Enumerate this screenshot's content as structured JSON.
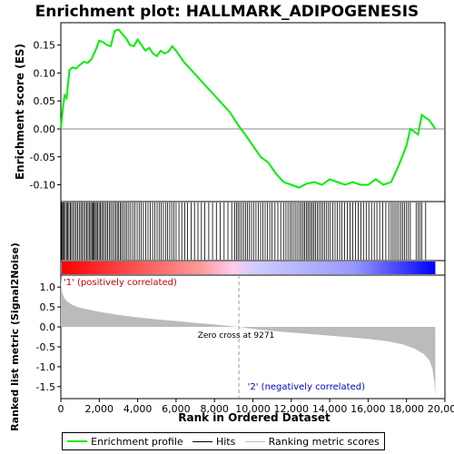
{
  "chart_data": {
    "type": "line",
    "title": "Enrichment plot: HALLMARK_ADIPOGENESIS",
    "top_panel": {
      "ylabel": "Enrichment score (ES)",
      "ylim": [
        -0.13,
        0.19
      ],
      "yticks": [
        "0.15",
        "0.10",
        "0.05",
        "0.00",
        "-0.05",
        "-0.10"
      ],
      "ytick_values": [
        0.15,
        0.1,
        0.05,
        0.0,
        -0.05,
        -0.1
      ],
      "series": [
        {
          "name": "Enrichment profile",
          "color": "#00ee00",
          "x": [
            0,
            100,
            200,
            300,
            450,
            600,
            800,
            1000,
            1200,
            1400,
            1600,
            1800,
            2000,
            2200,
            2400,
            2600,
            2800,
            3000,
            3200,
            3400,
            3600,
            3800,
            4000,
            4200,
            4400,
            4600,
            4800,
            5000,
            5200,
            5400,
            5600,
            5800,
            6000,
            6400,
            6800,
            7200,
            7600,
            8000,
            8400,
            8800,
            9271,
            9600,
            10000,
            10400,
            10800,
            11200,
            11600,
            12000,
            12400,
            12800,
            13200,
            13600,
            14000,
            14400,
            14800,
            15200,
            15600,
            16000,
            16400,
            16800,
            17200,
            17600,
            18000,
            18200,
            18400,
            18600,
            18800,
            19000,
            19200,
            19500
          ],
          "y": [
            0.0,
            0.035,
            0.06,
            0.055,
            0.105,
            0.11,
            0.108,
            0.115,
            0.12,
            0.118,
            0.125,
            0.14,
            0.158,
            0.155,
            0.15,
            0.148,
            0.175,
            0.178,
            0.17,
            0.162,
            0.15,
            0.148,
            0.16,
            0.15,
            0.14,
            0.145,
            0.135,
            0.13,
            0.14,
            0.135,
            0.138,
            0.148,
            0.14,
            0.12,
            0.105,
            0.09,
            0.075,
            0.06,
            0.045,
            0.03,
            0.005,
            -0.01,
            -0.03,
            -0.05,
            -0.06,
            -0.08,
            -0.095,
            -0.1,
            -0.105,
            -0.098,
            -0.095,
            -0.1,
            -0.09,
            -0.095,
            -0.1,
            -0.095,
            -0.1,
            -0.1,
            -0.09,
            -0.1,
            -0.095,
            -0.065,
            -0.03,
            0.0,
            -0.005,
            -0.01,
            0.025,
            0.02,
            0.015,
            0.0
          ]
        }
      ]
    },
    "hits_panel": {
      "name": "Hits",
      "positions": [
        30,
        60,
        110,
        160,
        230,
        300,
        350,
        420,
        500,
        560,
        640,
        720,
        800,
        880,
        960,
        1040,
        1110,
        1190,
        1270,
        1350,
        1420,
        1500,
        1560,
        1620,
        1680,
        1730,
        1790,
        1850,
        1920,
        1990,
        2060,
        2130,
        2200,
        2280,
        2360,
        2440,
        2520,
        2600,
        2690,
        2780,
        2860,
        2940,
        3010,
        3090,
        3170,
        3260,
        3350,
        3440,
        3540,
        3640,
        3750,
        3860,
        3970,
        4080,
        4190,
        4300,
        4420,
        4540,
        4660,
        4780,
        4900,
        5010,
        5120,
        5230,
        5340,
        5450,
        5560,
        5670,
        5780,
        5890,
        6000,
        6150,
        6300,
        6450,
        6600,
        6780,
        6960,
        7140,
        7320,
        7500,
        7700,
        7900,
        8100,
        8300,
        8500,
        8700,
        8900,
        9050,
        9150,
        9230,
        9320,
        9420,
        9520,
        9620,
        9720,
        9820,
        9930,
        10040,
        10160,
        10280,
        10400,
        10520,
        10640,
        10760,
        10880,
        11000,
        11150,
        11300,
        11450,
        11600,
        11720,
        11830,
        11940,
        12040,
        12140,
        12240,
        12340,
        12440,
        12530,
        12620,
        12700,
        12780,
        12860,
        12940,
        13020,
        13100,
        13180,
        13260,
        13350,
        13440,
        13540,
        13640,
        13740,
        13840,
        13940,
        14040,
        14160,
        14280,
        14400,
        14520,
        14640,
        14780,
        14920,
        15060,
        15200,
        15340,
        15480,
        15620,
        15760,
        15900,
        16040,
        16180,
        16320,
        16460,
        16600,
        16760,
        16920,
        17080,
        17200,
        17300,
        17400,
        17500,
        17600,
        17700,
        17800,
        17900,
        18000,
        18100,
        18200,
        18500,
        18600,
        18700,
        18800,
        19000
      ]
    },
    "heatbar": {
      "colors": [
        "#ff0000",
        "#ff9999",
        "#ffccee",
        "#ccccff",
        "#9999ff",
        "#0000ff"
      ],
      "zero_cross": 9271
    },
    "bottom_panel": {
      "name": "Ranking metric scores",
      "ylabel": "Ranked list metric (Signal2Noise)",
      "ylim": [
        -1.8,
        1.3
      ],
      "yticks": [
        "1.0",
        "0.5",
        "0.0",
        "-0.5",
        "-1.0",
        "-1.5"
      ],
      "ytick_values": [
        1.0,
        0.5,
        0.0,
        -0.5,
        -1.0,
        -1.5
      ],
      "x": [
        0,
        50,
        150,
        300,
        600,
        1000,
        2000,
        3000,
        4000,
        5000,
        6000,
        7000,
        8000,
        9271,
        10000,
        11000,
        12000,
        13000,
        14000,
        15000,
        16000,
        17000,
        17800,
        18400,
        18900,
        19200,
        19350,
        19450,
        19500
      ],
      "y": [
        1.25,
        0.9,
        0.75,
        0.65,
        0.55,
        0.48,
        0.38,
        0.3,
        0.24,
        0.19,
        0.15,
        0.1,
        0.06,
        0.0,
        -0.05,
        -0.1,
        -0.14,
        -0.18,
        -0.22,
        -0.26,
        -0.3,
        -0.36,
        -0.44,
        -0.54,
        -0.68,
        -0.85,
        -1.05,
        -1.4,
        -1.75
      ],
      "annotations": [
        "'1' (positively correlated)",
        "Zero cross at 9271",
        "'2' (negatively correlated)"
      ]
    },
    "xlabel": "Rank in Ordered Dataset",
    "xlim": [
      0,
      20000
    ],
    "xticks": [
      "0",
      "2,000",
      "4,000",
      "6,000",
      "8,000",
      "10,000",
      "12,000",
      "14,000",
      "16,000",
      "18,000",
      "20,000"
    ],
    "xtick_values": [
      0,
      2000,
      4000,
      6000,
      8000,
      10000,
      12000,
      14000,
      16000,
      18000,
      20000
    ],
    "legend": {
      "placement": "bottom",
      "items": [
        "Enrichment profile",
        "Hits",
        "Ranking metric scores"
      ],
      "colors": [
        "#00ee00",
        "#000000",
        "#bbbbbb"
      ]
    }
  }
}
